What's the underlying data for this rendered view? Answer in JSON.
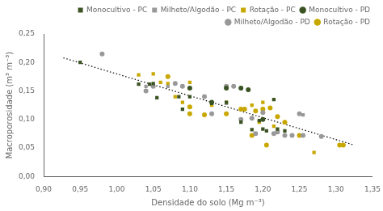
{
  "chart_data": {
    "type": "scatter",
    "x_label": "Densidade do solo (Mg m⁻³)",
    "y_label": "Macroporosidade (m³ m⁻³)",
    "xlim": [
      0.9,
      1.35
    ],
    "ylim": [
      0.0,
      0.25
    ],
    "xticks": [
      {
        "value": 0.9,
        "label": "0,90"
      },
      {
        "value": 0.95,
        "label": "0,95"
      },
      {
        "value": 1.0,
        "label": "1,00"
      },
      {
        "value": 1.05,
        "label": "1,05"
      },
      {
        "value": 1.1,
        "label": "1,10"
      },
      {
        "value": 1.15,
        "label": "1,15"
      },
      {
        "value": 1.2,
        "label": "1,20"
      },
      {
        "value": 1.25,
        "label": "1,25"
      },
      {
        "value": 1.3,
        "label": "1,30"
      },
      {
        "value": 1.35,
        "label": "1,35"
      }
    ],
    "yticks": [
      {
        "value": 0.0,
        "label": "0,00"
      },
      {
        "value": 0.05,
        "label": "0,05"
      },
      {
        "value": 0.1,
        "label": "0,10"
      },
      {
        "value": 0.15,
        "label": "0,15"
      },
      {
        "value": 0.2,
        "label": "0,20"
      },
      {
        "value": 0.25,
        "label": "0,25"
      }
    ],
    "grid": false,
    "legend": "upper right",
    "series": [
      {
        "name": "Monocultivo - PC",
        "color": "#3b5323",
        "marker": "square",
        "x": [
          0.95,
          1.03,
          1.045,
          1.05,
          1.055,
          1.085,
          1.09,
          1.1,
          1.13,
          1.15,
          1.17,
          1.185,
          1.195,
          1.2,
          1.205,
          1.215,
          1.22,
          1.23
        ],
        "values": [
          0.2,
          0.162,
          0.162,
          0.163,
          0.138,
          0.14,
          0.118,
          0.14,
          0.128,
          0.13,
          0.095,
          0.082,
          0.098,
          0.083,
          0.08,
          0.135,
          0.083,
          0.08
        ]
      },
      {
        "name": "Milheto/Algodão - PC",
        "color": "#999999",
        "marker": "square",
        "x": [
          1.04,
          1.07,
          1.09,
          1.15,
          1.255
        ],
        "values": [
          0.158,
          0.158,
          0.158,
          0.128,
          0.108
        ]
      },
      {
        "name": "Rotação - PC",
        "color": "#c8a800",
        "marker": "square",
        "x": [
          1.03,
          1.05,
          1.06,
          1.07,
          1.08,
          1.09,
          1.1,
          1.13,
          1.15,
          1.185,
          1.195,
          1.2,
          1.215,
          1.27
        ],
        "values": [
          0.178,
          0.18,
          0.165,
          0.163,
          0.14,
          0.13,
          0.165,
          0.125,
          0.13,
          0.125,
          0.095,
          0.13,
          0.088,
          0.042
        ]
      },
      {
        "name": "Monocultivo - PD",
        "color": "#3b5323",
        "marker": "circle",
        "x": [
          1.1,
          1.13,
          1.15,
          1.17,
          1.18,
          1.2
        ],
        "values": [
          0.155,
          0.13,
          0.155,
          0.155,
          0.152,
          0.1
        ]
      },
      {
        "name": "Milheto/Algodão - PD",
        "color": "#999999",
        "marker": "circle",
        "x": [
          0.98,
          1.04,
          1.05,
          1.08,
          1.09,
          1.12,
          1.13,
          1.15,
          1.16,
          1.17,
          1.185,
          1.19,
          1.2,
          1.215,
          1.22,
          1.23,
          1.24,
          1.25,
          1.255,
          1.28
        ],
        "values": [
          0.215,
          0.15,
          0.158,
          0.163,
          0.158,
          0.14,
          0.11,
          0.158,
          0.158,
          0.1,
          0.102,
          0.075,
          0.112,
          0.075,
          0.078,
          0.072,
          0.072,
          0.11,
          0.072,
          0.07
        ]
      },
      {
        "name": "Rotação - PD",
        "color": "#c8a800",
        "marker": "circle",
        "x": [
          1.07,
          1.1,
          1.1,
          1.12,
          1.15,
          1.17,
          1.175,
          1.185,
          1.19,
          1.2,
          1.205,
          1.21,
          1.22,
          1.23,
          1.25,
          1.305,
          1.31
        ],
        "values": [
          0.175,
          0.122,
          0.11,
          0.108,
          0.11,
          0.118,
          0.118,
          0.072,
          0.115,
          0.118,
          0.055,
          0.12,
          0.105,
          0.095,
          0.072,
          0.055,
          0.055
        ]
      },
      {
        "type": "line",
        "color": "#000000",
        "line_style": "dotted",
        "x": [
          0.927,
          1.325
        ],
        "values": [
          0.208,
          0.055
        ]
      }
    ]
  }
}
